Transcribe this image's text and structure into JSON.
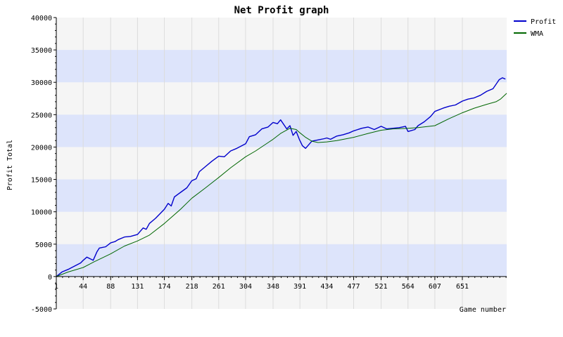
{
  "chart_data": {
    "type": "line",
    "title": "Net Profit graph",
    "xlabel": "Game number",
    "ylabel": "Profit Total",
    "xlim": [
      1,
      722
    ],
    "ylim": [
      -5000,
      40000
    ],
    "x_ticks": [
      1,
      44,
      88,
      131,
      174,
      218,
      261,
      304,
      348,
      391,
      434,
      477,
      521,
      564,
      607,
      651
    ],
    "y_ticks": [
      -5000,
      0,
      5000,
      10000,
      15000,
      20000,
      25000,
      30000,
      35000,
      40000
    ],
    "grid": true,
    "legend_position": "top-right",
    "series": [
      {
        "name": "Profit",
        "color": "#0000cc",
        "x": [
          1,
          10,
          20,
          30,
          40,
          44,
          50,
          60,
          66,
          70,
          80,
          88,
          95,
          100,
          110,
          120,
          131,
          140,
          145,
          150,
          160,
          174,
          180,
          185,
          190,
          200,
          210,
          218,
          225,
          230,
          240,
          250,
          261,
          270,
          280,
          290,
          304,
          310,
          320,
          330,
          340,
          348,
          355,
          360,
          370,
          375,
          380,
          385,
          390,
          395,
          400,
          410,
          420,
          430,
          434,
          440,
          450,
          460,
          470,
          477,
          490,
          500,
          510,
          521,
          530,
          540,
          550,
          560,
          564,
          575,
          580,
          590,
          600,
          607,
          620,
          630,
          640,
          651,
          660,
          670,
          680,
          690,
          700,
          705,
          710,
          715,
          720
        ],
        "y": [
          0,
          700,
          1100,
          1600,
          2100,
          2500,
          3000,
          2500,
          3800,
          4400,
          4600,
          5200,
          5400,
          5700,
          6100,
          6200,
          6500,
          7500,
          7300,
          8200,
          9000,
          10400,
          11300,
          10900,
          12300,
          13000,
          13700,
          14800,
          15100,
          16200,
          17000,
          17800,
          18600,
          18500,
          19400,
          19800,
          20500,
          21600,
          21900,
          22800,
          23100,
          23800,
          23600,
          24200,
          22800,
          23300,
          21800,
          22400,
          21200,
          20200,
          19800,
          20900,
          21100,
          21300,
          21400,
          21200,
          21700,
          21900,
          22200,
          22500,
          22900,
          23100,
          22700,
          23200,
          22800,
          22900,
          23000,
          23200,
          22400,
          22700,
          23300,
          23900,
          24700,
          25500,
          26000,
          26300,
          26500,
          27100,
          27400,
          27600,
          28000,
          28600,
          29000,
          29700,
          30400,
          30700,
          30500
        ]
      },
      {
        "name": "WMA",
        "color": "#006600",
        "x": [
          1,
          20,
          44,
          60,
          88,
          110,
          131,
          150,
          174,
          200,
          218,
          240,
          261,
          280,
          304,
          320,
          348,
          360,
          375,
          385,
          391,
          400,
          410,
          420,
          434,
          450,
          477,
          500,
          521,
          540,
          564,
          580,
          607,
          630,
          651,
          670,
          690,
          705,
          712,
          722
        ],
        "y": [
          0,
          700,
          1400,
          2200,
          3500,
          4700,
          5500,
          6400,
          8200,
          10400,
          12100,
          13700,
          15300,
          16800,
          18500,
          19400,
          21200,
          22100,
          22900,
          22700,
          22200,
          21500,
          20900,
          20700,
          20800,
          21000,
          21500,
          22100,
          22600,
          22800,
          22900,
          23000,
          23300,
          24400,
          25300,
          26000,
          26600,
          27000,
          27400,
          28300
        ]
      }
    ]
  }
}
